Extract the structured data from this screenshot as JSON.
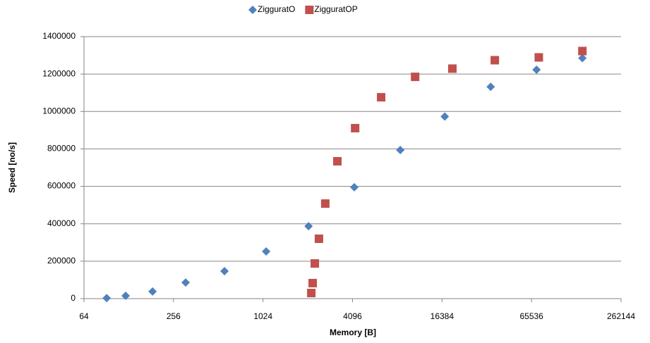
{
  "chart_data": {
    "type": "scatter",
    "x_label": "Memory [B]",
    "y_label": "Speed [no/s]",
    "xscale": "log2",
    "xlim": [
      64,
      262144
    ],
    "xticks": [
      64,
      256,
      1024,
      4096,
      16384,
      65536,
      262144
    ],
    "ylim": [
      0,
      1400000
    ],
    "yticks": [
      0,
      200000,
      400000,
      600000,
      800000,
      1000000,
      1200000,
      1400000
    ],
    "grid": true,
    "legend": "top",
    "series": [
      {
        "name": "ZigguratO",
        "color": "#4f81bd",
        "marker": "diamond",
        "x": [
          91,
          122,
          185,
          309,
          564,
          1075,
          2073,
          4210,
          8580,
          17090,
          34800,
          70800,
          144000
        ],
        "values": [
          3000,
          15000,
          38000,
          86000,
          147000,
          252000,
          387000,
          595000,
          794000,
          973000,
          1132000,
          1223000,
          1285000
        ]
      },
      {
        "name": "ZigguratOP",
        "color": "#c0504d",
        "marker": "square",
        "x": [
          2163,
          2210,
          2284,
          2435,
          2686,
          3240,
          4265,
          6380,
          10800,
          19230,
          37100,
          73300,
          144000
        ],
        "values": [
          30000,
          83000,
          188000,
          320000,
          508000,
          734000,
          911000,
          1076000,
          1185000,
          1229000,
          1274000,
          1289000,
          1323000
        ]
      }
    ]
  }
}
